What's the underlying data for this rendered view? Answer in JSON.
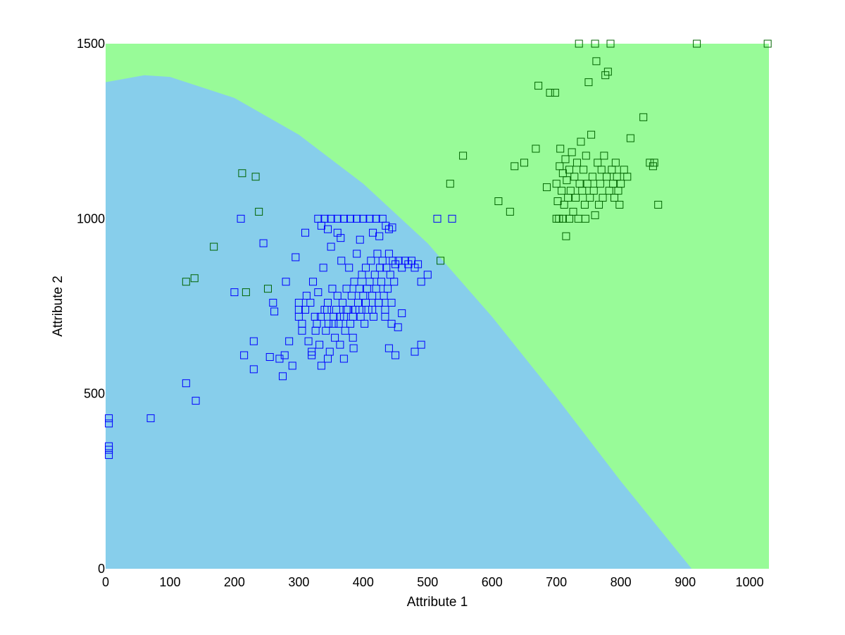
{
  "chart_data": {
    "type": "scatter",
    "title": "",
    "xlabel": "Attribute 1",
    "ylabel": "Attribute 2",
    "xlim": [
      0,
      1030
    ],
    "ylim": [
      0,
      1500
    ],
    "x_ticks": [
      0,
      100,
      200,
      300,
      400,
      500,
      600,
      700,
      800,
      900,
      1000
    ],
    "y_ticks": [
      0,
      500,
      1000,
      1500
    ],
    "grid": false,
    "legend": "none",
    "marker": "square-open",
    "region_colors": {
      "class_a": "#87ceeb",
      "class_b": "#98fb98"
    },
    "decision_boundary": {
      "x": [
        0,
        60,
        100,
        200,
        300,
        400,
        500,
        600,
        700,
        800,
        910
      ],
      "y": [
        1390,
        1410,
        1405,
        1345,
        1240,
        1100,
        930,
        720,
        490,
        250,
        0
      ]
    },
    "series": [
      {
        "color": "#0000ff",
        "points": [
          [
            5,
            430
          ],
          [
            5,
            415
          ],
          [
            5,
            350
          ],
          [
            5,
            340
          ],
          [
            5,
            325
          ],
          [
            70,
            430
          ],
          [
            125,
            530
          ],
          [
            140,
            480
          ],
          [
            200,
            790
          ],
          [
            210,
            1000
          ],
          [
            215,
            610
          ],
          [
            230,
            650
          ],
          [
            230,
            570
          ],
          [
            245,
            930
          ],
          [
            255,
            605
          ],
          [
            260,
            760
          ],
          [
            262,
            735
          ],
          [
            270,
            600
          ],
          [
            275,
            550
          ],
          [
            278,
            610
          ],
          [
            280,
            820
          ],
          [
            285,
            650
          ],
          [
            290,
            580
          ],
          [
            295,
            890
          ],
          [
            300,
            760
          ],
          [
            305,
            700
          ],
          [
            310,
            960
          ],
          [
            312,
            780
          ],
          [
            315,
            650
          ],
          [
            320,
            610
          ],
          [
            322,
            820
          ],
          [
            325,
            720
          ],
          [
            328,
            700
          ],
          [
            330,
            790
          ],
          [
            332,
            640
          ],
          [
            335,
            580
          ],
          [
            338,
            860
          ],
          [
            340,
            740
          ],
          [
            342,
            680
          ],
          [
            345,
            760
          ],
          [
            346,
            700
          ],
          [
            348,
            620
          ],
          [
            350,
            920
          ],
          [
            352,
            800
          ],
          [
            354,
            720
          ],
          [
            356,
            660
          ],
          [
            358,
            740
          ],
          [
            360,
            780
          ],
          [
            362,
            700
          ],
          [
            364,
            640
          ],
          [
            366,
            880
          ],
          [
            368,
            760
          ],
          [
            370,
            720
          ],
          [
            372,
            680
          ],
          [
            374,
            800
          ],
          [
            376,
            740
          ],
          [
            378,
            860
          ],
          [
            380,
            700
          ],
          [
            382,
            780
          ],
          [
            384,
            660
          ],
          [
            386,
            820
          ],
          [
            388,
            740
          ],
          [
            390,
            900
          ],
          [
            392,
            760
          ],
          [
            394,
            800
          ],
          [
            396,
            720
          ],
          [
            398,
            840
          ],
          [
            400,
            780
          ],
          [
            402,
            700
          ],
          [
            404,
            860
          ],
          [
            406,
            800
          ],
          [
            408,
            740
          ],
          [
            410,
            820
          ],
          [
            412,
            880
          ],
          [
            414,
            780
          ],
          [
            416,
            720
          ],
          [
            418,
            840
          ],
          [
            420,
            800
          ],
          [
            422,
            900
          ],
          [
            424,
            760
          ],
          [
            426,
            860
          ],
          [
            428,
            820
          ],
          [
            430,
            880
          ],
          [
            432,
            780
          ],
          [
            434,
            740
          ],
          [
            436,
            860
          ],
          [
            438,
            800
          ],
          [
            440,
            900
          ],
          [
            442,
            840
          ],
          [
            444,
            760
          ],
          [
            446,
            880
          ],
          [
            448,
            820
          ],
          [
            450,
            870
          ],
          [
            455,
            880
          ],
          [
            460,
            860
          ],
          [
            465,
            880
          ],
          [
            470,
            870
          ],
          [
            475,
            880
          ],
          [
            480,
            860
          ],
          [
            485,
            870
          ],
          [
            490,
            820
          ],
          [
            500,
            840
          ],
          [
            330,
            1000
          ],
          [
            340,
            1000
          ],
          [
            350,
            1000
          ],
          [
            360,
            1000
          ],
          [
            370,
            1000
          ],
          [
            380,
            1000
          ],
          [
            390,
            1000
          ],
          [
            400,
            1000
          ],
          [
            410,
            1000
          ],
          [
            420,
            1000
          ],
          [
            430,
            1000
          ],
          [
            435,
            980
          ],
          [
            440,
            970
          ],
          [
            445,
            975
          ],
          [
            415,
            960
          ],
          [
            425,
            950
          ],
          [
            395,
            940
          ],
          [
            365,
            945
          ],
          [
            345,
            970
          ],
          [
            335,
            980
          ],
          [
            360,
            960
          ],
          [
            300,
            740
          ],
          [
            300,
            720
          ],
          [
            305,
            680
          ],
          [
            310,
            740
          ],
          [
            318,
            760
          ],
          [
            326,
            680
          ],
          [
            334,
            720
          ],
          [
            344,
            740
          ],
          [
            354,
            700
          ],
          [
            364,
            720
          ],
          [
            374,
            740
          ],
          [
            384,
            720
          ],
          [
            394,
            740
          ],
          [
            404,
            760
          ],
          [
            414,
            740
          ],
          [
            424,
            760
          ],
          [
            434,
            720
          ],
          [
            444,
            700
          ],
          [
            454,
            690
          ],
          [
            460,
            730
          ],
          [
            440,
            630
          ],
          [
            450,
            610
          ],
          [
            480,
            620
          ],
          [
            490,
            640
          ],
          [
            385,
            630
          ],
          [
            370,
            600
          ],
          [
            345,
            600
          ],
          [
            320,
            620
          ],
          [
            515,
            1000
          ],
          [
            538,
            1000
          ]
        ]
      },
      {
        "color": "#006400",
        "points": [
          [
            125,
            820
          ],
          [
            138,
            830
          ],
          [
            168,
            920
          ],
          [
            212,
            1130
          ],
          [
            218,
            790
          ],
          [
            233,
            1120
          ],
          [
            238,
            1020
          ],
          [
            252,
            800
          ],
          [
            520,
            880
          ],
          [
            535,
            1100
          ],
          [
            555,
            1180
          ],
          [
            610,
            1050
          ],
          [
            628,
            1020
          ],
          [
            635,
            1150
          ],
          [
            650,
            1160
          ],
          [
            668,
            1200
          ],
          [
            672,
            1380
          ],
          [
            685,
            1090
          ],
          [
            690,
            1360
          ],
          [
            698,
            1360
          ],
          [
            700,
            1100
          ],
          [
            702,
            1050
          ],
          [
            704,
            1000
          ],
          [
            705,
            1150
          ],
          [
            706,
            1200
          ],
          [
            708,
            1080
          ],
          [
            710,
            1130
          ],
          [
            712,
            1040
          ],
          [
            714,
            1170
          ],
          [
            715,
            950
          ],
          [
            716,
            1110
          ],
          [
            718,
            1060
          ],
          [
            720,
            1140
          ],
          [
            722,
            1080
          ],
          [
            724,
            1190
          ],
          [
            726,
            1020
          ],
          [
            728,
            1120
          ],
          [
            730,
            1060
          ],
          [
            732,
            1160
          ],
          [
            734,
            1000
          ],
          [
            735,
            1500
          ],
          [
            736,
            1100
          ],
          [
            738,
            1220
          ],
          [
            740,
            1080
          ],
          [
            742,
            1140
          ],
          [
            744,
            1040
          ],
          [
            746,
            1180
          ],
          [
            748,
            1100
          ],
          [
            750,
            1390
          ],
          [
            752,
            1060
          ],
          [
            754,
            1240
          ],
          [
            756,
            1120
          ],
          [
            758,
            1080
          ],
          [
            760,
            1500
          ],
          [
            762,
            1450
          ],
          [
            764,
            1160
          ],
          [
            766,
            1040
          ],
          [
            768,
            1100
          ],
          [
            770,
            1140
          ],
          [
            772,
            1060
          ],
          [
            774,
            1180
          ],
          [
            776,
            1410
          ],
          [
            778,
            1120
          ],
          [
            780,
            1420
          ],
          [
            782,
            1080
          ],
          [
            784,
            1500
          ],
          [
            786,
            1140
          ],
          [
            788,
            1100
          ],
          [
            790,
            1060
          ],
          [
            792,
            1160
          ],
          [
            794,
            1120
          ],
          [
            796,
            1080
          ],
          [
            798,
            1040
          ],
          [
            800,
            1100
          ],
          [
            805,
            1140
          ],
          [
            810,
            1120
          ],
          [
            815,
            1230
          ],
          [
            835,
            1290
          ],
          [
            845,
            1160
          ],
          [
            850,
            1150
          ],
          [
            852,
            1160
          ],
          [
            858,
            1040
          ],
          [
            918,
            1500
          ],
          [
            1028,
            1500
          ],
          [
            700,
            1000
          ],
          [
            710,
            1000
          ],
          [
            720,
            1000
          ],
          [
            745,
            1000
          ],
          [
            760,
            1010
          ]
        ]
      }
    ]
  }
}
